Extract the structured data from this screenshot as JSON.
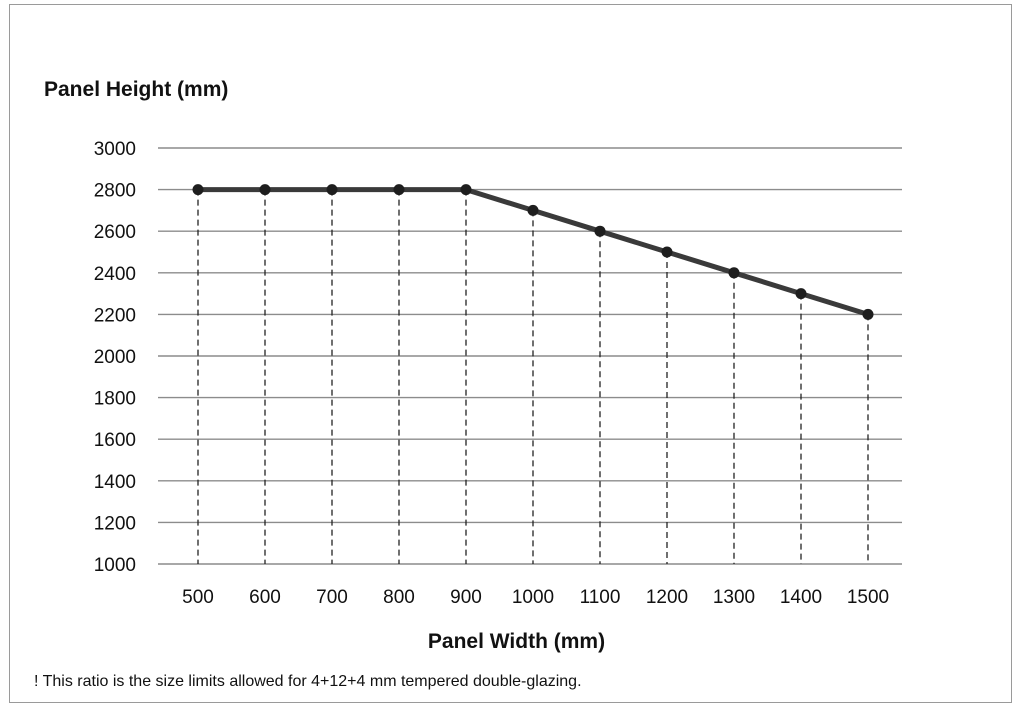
{
  "chart_data": {
    "type": "line",
    "title": "",
    "xlabel": "Panel Width (mm)",
    "ylabel": "Panel Height (mm)",
    "x": [
      500,
      600,
      700,
      800,
      900,
      1000,
      1100,
      1200,
      1300,
      1400,
      1500
    ],
    "series": [
      {
        "values": [
          2800,
          2800,
          2800,
          2800,
          2800,
          2700,
          2600,
          2500,
          2400,
          2300,
          2200
        ]
      }
    ],
    "xticks": [
      "500",
      "600",
      "700",
      "800",
      "900",
      "1000",
      "1100",
      "1200",
      "1300",
      "1400",
      "1500"
    ],
    "yticks": [
      "1000",
      "1200",
      "1400",
      "1600",
      "1800",
      "2000",
      "2200",
      "2400",
      "2600",
      "2800",
      "3000"
    ],
    "ylim": [
      1000,
      3000
    ],
    "grid": "horizontal",
    "drop_lines": "dashed",
    "legend": "none",
    "line_color": "#3a3a3a",
    "grid_color": "#8c8c8c"
  },
  "footnote": "! This ratio is the size limits allowed for 4+12+4 mm tempered double-glazing."
}
